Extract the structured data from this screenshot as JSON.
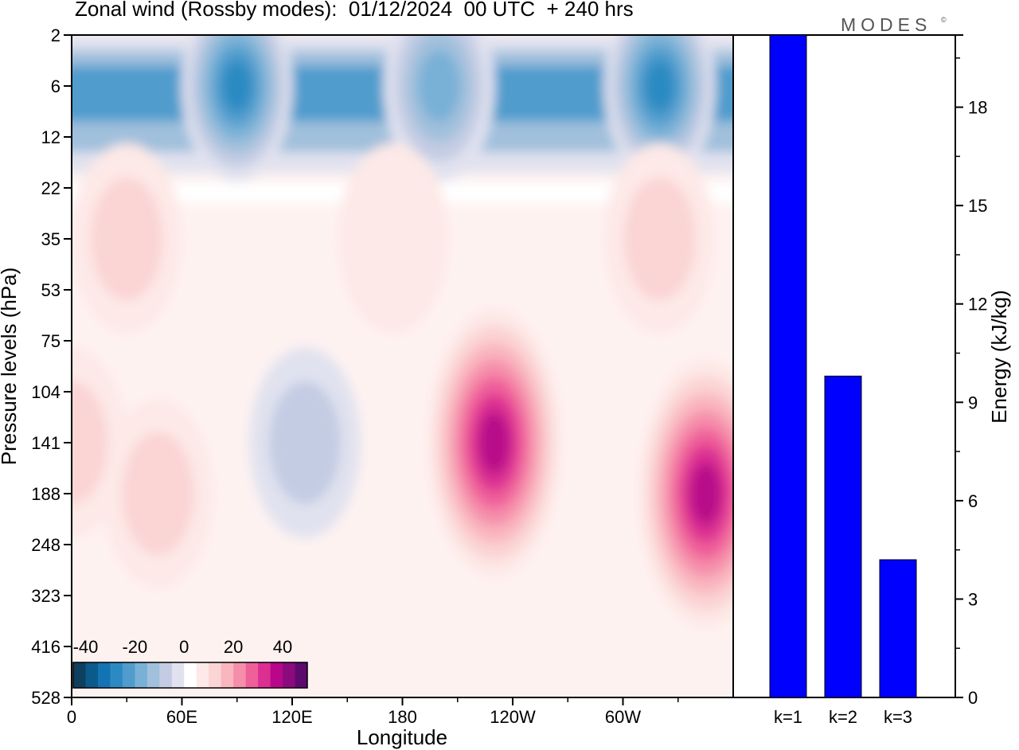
{
  "title": "Zonal wind (Rossby modes):  01/12/2024  00 UTC  + 240 hrs",
  "logo": "MODES",
  "logo_mark": "©",
  "chart_data": [
    {
      "type": "heatmap",
      "title": "Zonal wind (Rossby modes):  01/12/2024  00 UTC  + 240 hrs",
      "xlabel": "Longitude",
      "ylabel": "Pressure levels (hPa)",
      "x_ticks": [
        "0",
        "60E",
        "120E",
        "180",
        "120W",
        "60W"
      ],
      "x_tick_degrees": [
        0,
        60,
        120,
        180,
        240,
        300
      ],
      "xlim": [
        0,
        360
      ],
      "y_ticks": [
        "2",
        "6",
        "12",
        "22",
        "35",
        "53",
        "75",
        "104",
        "141",
        "188",
        "248",
        "323",
        "416",
        "528"
      ],
      "colorbar": {
        "tick_labels": [
          "-40",
          "-20",
          "0",
          "20",
          "40"
        ],
        "tick_values": [
          -40,
          -20,
          0,
          20,
          40
        ],
        "levels": [
          -45,
          -40,
          -35,
          -30,
          -25,
          -20,
          -15,
          -10,
          -5,
          0,
          5,
          10,
          15,
          20,
          25,
          30,
          35,
          40,
          45
        ],
        "colors": [
          "#0f3f5e",
          "#0b5a8c",
          "#1473b3",
          "#2c8ac2",
          "#4f9ccd",
          "#78b0d6",
          "#a0c0dc",
          "#c3cce3",
          "#e1e2ef",
          "#ffffff",
          "#fde9e7",
          "#fbd4d4",
          "#f9b6bf",
          "#f58eaa",
          "#ef5f9a",
          "#dc2f92",
          "#b8078a",
          "#8b0a7e",
          "#5c0a6c"
        ]
      },
      "features": [
        {
          "lon": 90,
          "level": "6",
          "value": -30
        },
        {
          "lon": 200,
          "level": "6",
          "value": -22
        },
        {
          "lon": 320,
          "level": "6",
          "value": -30
        },
        {
          "lon": 30,
          "level": "35",
          "value": 8
        },
        {
          "lon": 175,
          "level": "35",
          "value": 7
        },
        {
          "lon": 320,
          "level": "35",
          "value": 8
        },
        {
          "lon": 127,
          "level": "141",
          "value": -8
        },
        {
          "lon": 230,
          "level": "141",
          "value": 33
        },
        {
          "lon": 345,
          "level": "188",
          "value": 33
        },
        {
          "lon": 47,
          "level": "188",
          "value": 10
        },
        {
          "lon": 0,
          "level": "141",
          "value": 8
        }
      ]
    },
    {
      "type": "bar",
      "categories": [
        "k=1",
        "k=2",
        "k=3"
      ],
      "values": [
        20.2,
        9.8,
        4.2
      ],
      "ylabel": "Energy (kJ/kg)",
      "y_ticks": [
        0,
        3,
        6,
        9,
        12,
        15,
        18
      ],
      "ylim": [
        0,
        20.2
      ],
      "bar_color": "#0000ff"
    }
  ]
}
